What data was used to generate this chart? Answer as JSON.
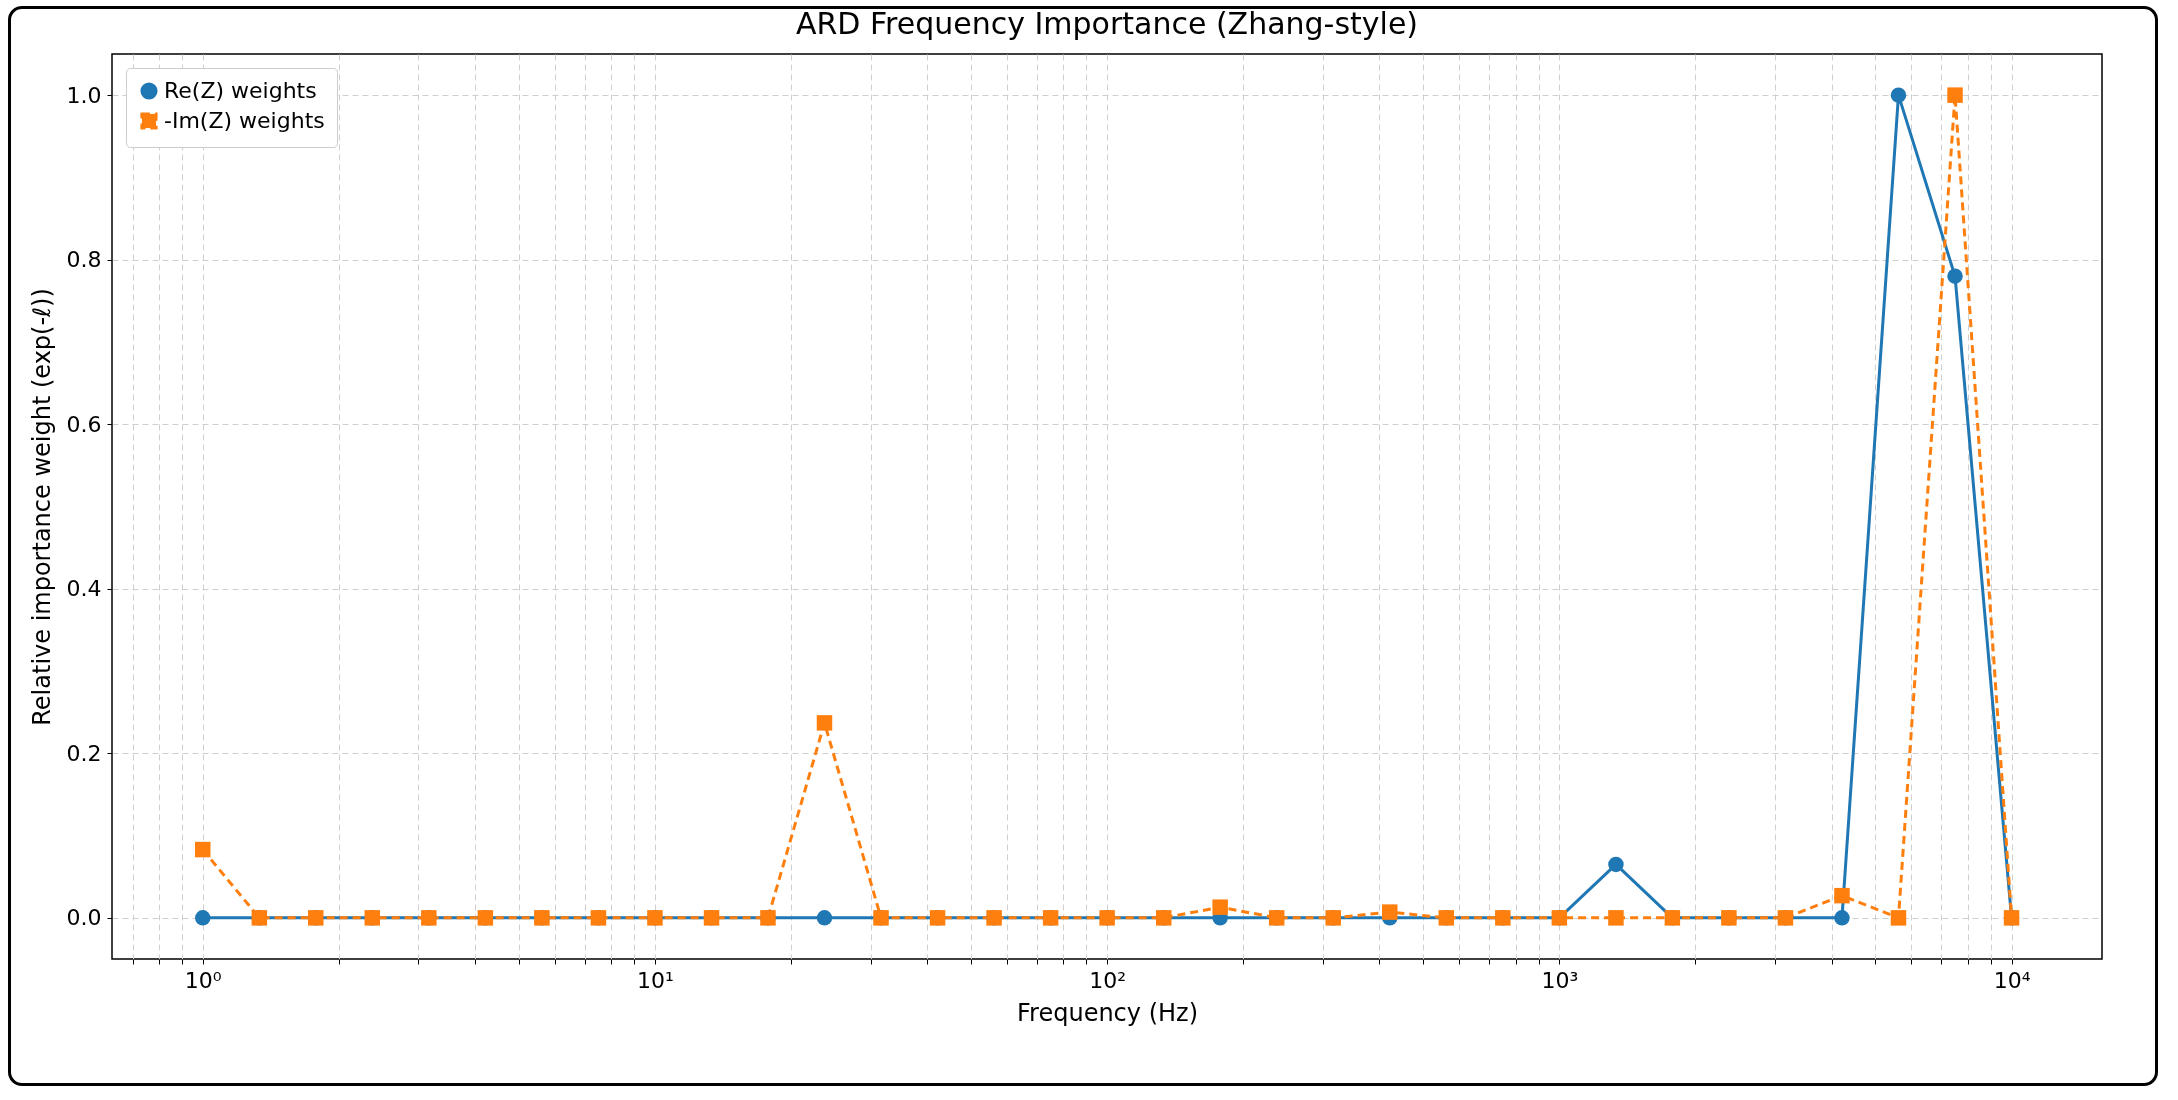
{
  "chart_data": {
    "type": "line",
    "title": "ARD Frequency Importance (Zhang-style)",
    "xlabel": "Frequency (Hz)",
    "ylabel": "Relative importance weight (exp(-ℓ))",
    "x": [
      1,
      1.334,
      1.778,
      2.371,
      3.162,
      4.217,
      5.623,
      7.499,
      10,
      13.34,
      17.78,
      23.71,
      31.62,
      42.17,
      56.23,
      74.99,
      100,
      133.4,
      177.8,
      237.1,
      316.2,
      421.7,
      562.3,
      749.9,
      1000,
      1334,
      1778,
      2371,
      3162,
      4217,
      5623,
      7499,
      10000
    ],
    "series": [
      {
        "name": "Re(Z) weights",
        "color": "#1f77b4",
        "marker": "circle",
        "line_style": "solid",
        "values": [
          0,
          0,
          0,
          0,
          0,
          0,
          0,
          0,
          0,
          0,
          0,
          0,
          0,
          0,
          0,
          0,
          0,
          0,
          0,
          0,
          0,
          0,
          0,
          0,
          0,
          0.065,
          0,
          0,
          0,
          0,
          1.0,
          0.78,
          0
        ]
      },
      {
        "name": "-Im(Z) weights",
        "color": "#ff7f0e",
        "marker": "square",
        "line_style": "dashed",
        "values": [
          0.083,
          0,
          0,
          0,
          0,
          0,
          0,
          0,
          0,
          0,
          0,
          0.237,
          0,
          0,
          0,
          0,
          0,
          0,
          0.013,
          0,
          0,
          0.007,
          0,
          0,
          0,
          0,
          0,
          0,
          0,
          0.027,
          0,
          1.0,
          0
        ]
      }
    ],
    "log": "x",
    "xlim": [
      0.63,
      15850
    ],
    "ylim": [
      -0.05,
      1.05
    ],
    "xticks": [
      {
        "value": 0.7,
        "label": null
      },
      {
        "value": 0.8,
        "label": null
      },
      {
        "value": 0.9,
        "label": null
      },
      {
        "value": 1,
        "label": "10⁰"
      },
      {
        "value": 2,
        "label": null
      },
      {
        "value": 3,
        "label": null
      },
      {
        "value": 4,
        "label": null
      },
      {
        "value": 5,
        "label": null
      },
      {
        "value": 6,
        "label": null
      },
      {
        "value": 7,
        "label": null
      },
      {
        "value": 8,
        "label": null
      },
      {
        "value": 9,
        "label": null
      },
      {
        "value": 10,
        "label": "10¹"
      },
      {
        "value": 20,
        "label": null
      },
      {
        "value": 30,
        "label": null
      },
      {
        "value": 40,
        "label": null
      },
      {
        "value": 50,
        "label": null
      },
      {
        "value": 60,
        "label": null
      },
      {
        "value": 70,
        "label": null
      },
      {
        "value": 80,
        "label": null
      },
      {
        "value": 90,
        "label": null
      },
      {
        "value": 100,
        "label": "10²"
      },
      {
        "value": 200,
        "label": null
      },
      {
        "value": 300,
        "label": null
      },
      {
        "value": 400,
        "label": null
      },
      {
        "value": 500,
        "label": null
      },
      {
        "value": 600,
        "label": null
      },
      {
        "value": 700,
        "label": null
      },
      {
        "value": 800,
        "label": null
      },
      {
        "value": 900,
        "label": null
      },
      {
        "value": 1000,
        "label": "10³"
      },
      {
        "value": 2000,
        "label": null
      },
      {
        "value": 3000,
        "label": null
      },
      {
        "value": 4000,
        "label": null
      },
      {
        "value": 5000,
        "label": null
      },
      {
        "value": 6000,
        "label": null
      },
      {
        "value": 7000,
        "label": null
      },
      {
        "value": 8000,
        "label": null
      },
      {
        "value": 9000,
        "label": null
      },
      {
        "value": 10000,
        "label": "10⁴"
      }
    ],
    "yticks": [
      {
        "value": 0,
        "label": "0.0"
      },
      {
        "value": 0.2,
        "label": "0.2"
      },
      {
        "value": 0.4,
        "label": "0.4"
      },
      {
        "value": 0.6,
        "label": "0.6"
      },
      {
        "value": 0.8,
        "label": "0.8"
      },
      {
        "value": 1,
        "label": "1.0"
      }
    ],
    "grid": true,
    "legend": "top left"
  }
}
